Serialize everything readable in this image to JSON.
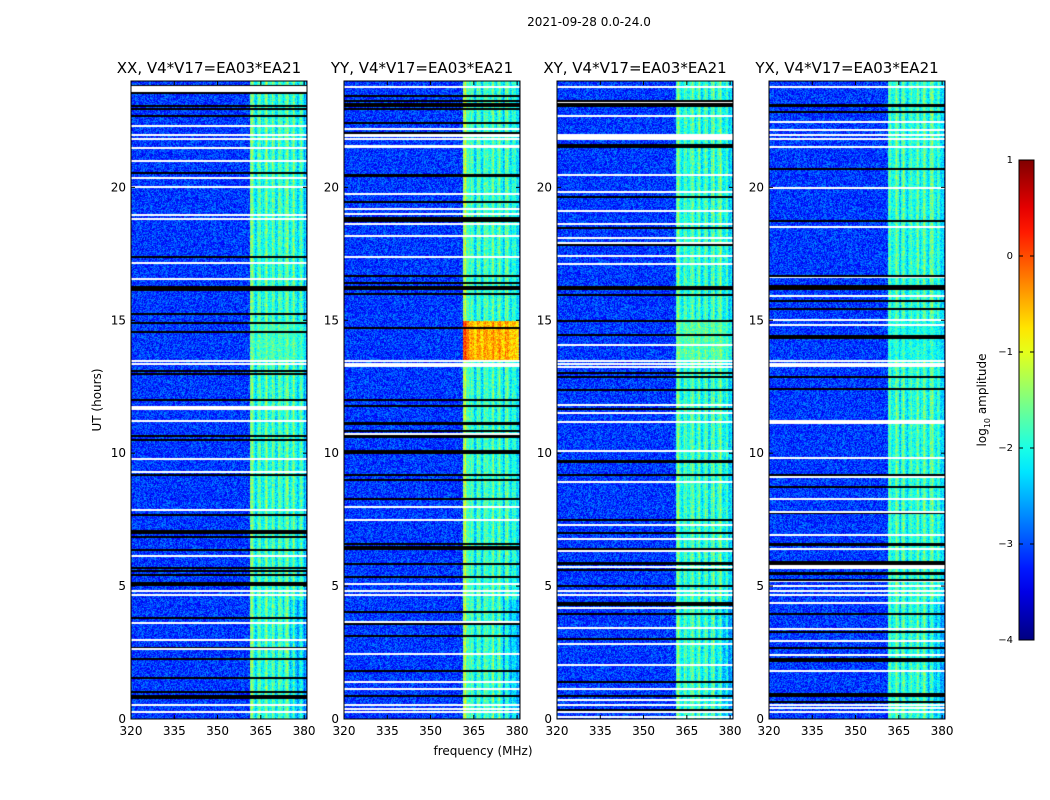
{
  "figure_title": "2021-09-28 0.0-24.0",
  "chart_data": {
    "type": "heatmap",
    "title": "2021-09-28 0.0-24.0",
    "xlabel": "frequency (MHz)",
    "ylabel": "UT (hours)",
    "xlim": [
      320,
      381
    ],
    "ylim": [
      0,
      24
    ],
    "x_ticks": [
      320,
      335,
      350,
      365,
      380
    ],
    "y_ticks": [
      0,
      5,
      10,
      15,
      20
    ],
    "panels": [
      {
        "title": "XX, V4*V17=EA03*EA21",
        "peak_log_amp": -1.2
      },
      {
        "title": "YY, V4*V17=EA03*EA21",
        "peak_log_amp": -0.4
      },
      {
        "title": "XY, V4*V17=EA03*EA21",
        "peak_log_amp": -1.1
      },
      {
        "title": "YX, V4*V17=EA03*EA21",
        "peak_log_amp": -1.4
      }
    ],
    "colorbar": {
      "label_prefix": "log",
      "label_sub": "10",
      "label_suffix": " amplitude",
      "range": [
        -4,
        1
      ],
      "ticks": [
        "1",
        "0",
        "−1",
        "−2",
        "−3",
        "−4"
      ],
      "colormap": "jet"
    },
    "band": {
      "start_mhz": 361,
      "end_mhz": 380.5,
      "cutoff_mhz": 375
    },
    "background_log_amp": -3.1,
    "flagged_rows": {
      "black_hours": [
        0.9,
        9.2,
        16.2,
        16.3,
        23.1,
        22.0
      ],
      "white_hours": [
        0.3,
        0.55,
        4.7,
        4.85,
        13.4,
        13.5,
        23.8,
        22.0,
        21.85
      ]
    }
  }
}
